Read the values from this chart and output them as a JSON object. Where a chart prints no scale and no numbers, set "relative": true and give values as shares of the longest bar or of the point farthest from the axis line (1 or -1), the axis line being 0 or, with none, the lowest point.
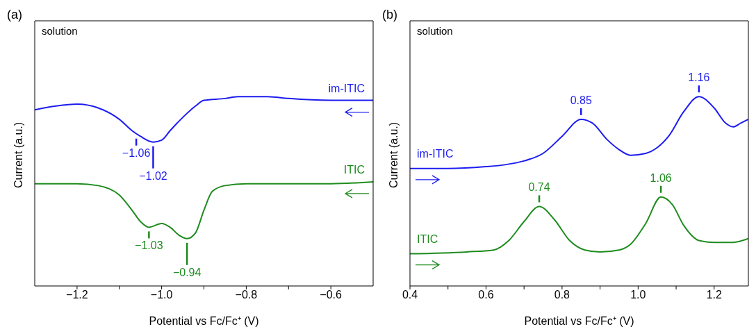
{
  "chart_data": [
    {
      "type": "line",
      "title": "(a)",
      "xlabel": "Potential vs Fc/Fc⁺ (V)",
      "ylabel": "Current (a.u.)",
      "relative": true,
      "marker": "none",
      "line_style": "solid",
      "xlim": [
        -1.3,
        -0.5
      ],
      "xticks": [
        {
          "value": -1.2,
          "label": "−1.2"
        },
        {
          "value": -1.1,
          "label": null
        },
        {
          "value": -1.0,
          "label": "−1.0"
        },
        {
          "value": -0.9,
          "label": null
        },
        {
          "value": -0.8,
          "label": "−0.8"
        },
        {
          "value": -0.7,
          "label": null
        },
        {
          "value": -0.6,
          "label": "−0.6"
        }
      ],
      "series": [
        {
          "name": "im-ITIC",
          "color": "#1c1cf0",
          "x": [
            -1.3,
            -1.25,
            -1.2,
            -1.15,
            -1.1,
            -1.07,
            -1.05,
            -1.02,
            -1.0,
            -0.98,
            -0.95,
            -0.92,
            -0.9,
            -0.85,
            -0.82,
            -0.75,
            -0.7,
            -0.6,
            -0.5
          ],
          "values": [
            0.93,
            0.95,
            0.96,
            0.94,
            0.88,
            0.82,
            0.79,
            0.76,
            0.77,
            0.82,
            0.89,
            0.95,
            0.98,
            0.99,
            1,
            1,
            0.99,
            0.98,
            0.98
          ]
        },
        {
          "name": "ITIC",
          "color": "#1e8c1e",
          "x": [
            -1.3,
            -1.2,
            -1.15,
            -1.1,
            -1.07,
            -1.05,
            -1.03,
            -1.0,
            -0.98,
            -0.96,
            -0.94,
            -0.92,
            -0.9,
            -0.88,
            -0.85,
            -0.8,
            -0.7,
            -0.6,
            -0.5
          ],
          "values": [
            0.54,
            0.54,
            0.53,
            0.48,
            0.4,
            0.34,
            0.31,
            0.33,
            0.31,
            0.27,
            0.25,
            0.28,
            0.4,
            0.5,
            0.53,
            0.54,
            0.54,
            0.54,
            0.55
          ]
        }
      ],
      "annotations": [
        "solution",
        {
          "text": "−1.06",
          "x": -1.06,
          "y": 0.8
        },
        {
          "text": "−1.02",
          "x": -1.02,
          "y": 0.76
        },
        {
          "text": "−1.03",
          "x": -1.03,
          "y": 0.31
        },
        {
          "text": "−0.94",
          "x": -0.94,
          "y": 0.25
        }
      ]
    },
    {
      "type": "line",
      "title": "(b)",
      "xlabel": "Potential vs Fc/Fc⁺ (V)",
      "ylabel": "Current (a.u.)",
      "relative": true,
      "marker": "none",
      "line_style": "solid",
      "xlim": [
        0.4,
        1.29
      ],
      "xticks": [
        0.4,
        {
          "value": 0.5,
          "label": null
        },
        0.6,
        {
          "value": 0.7,
          "label": null
        },
        0.8,
        {
          "value": 0.9,
          "label": null
        },
        {
          "value": 1.0,
          "label": "1.0"
        },
        {
          "value": 1.1,
          "label": null
        },
        1.2
      ],
      "series": [
        {
          "name": "im-ITIC",
          "color": "#1c1cf0",
          "x": [
            0.4,
            0.5,
            0.6,
            0.65,
            0.7,
            0.75,
            0.8,
            0.85,
            0.88,
            0.92,
            0.95,
            0.98,
            1.02,
            1.05,
            1.08,
            1.12,
            1.16,
            1.2,
            1.23,
            1.25,
            1.27,
            1.29
          ],
          "values": [
            0.62,
            0.62,
            0.63,
            0.64,
            0.66,
            0.7,
            0.79,
            0.88,
            0.86,
            0.77,
            0.72,
            0.69,
            0.7,
            0.73,
            0.79,
            0.92,
            1,
            0.94,
            0.86,
            0.84,
            0.86,
            0.88
          ]
        },
        {
          "name": "ITIC",
          "color": "#1e8c1e",
          "x": [
            0.4,
            0.55,
            0.62,
            0.66,
            0.7,
            0.74,
            0.78,
            0.82,
            0.86,
            0.9,
            0.95,
            0.98,
            1.02,
            1.06,
            1.09,
            1.12,
            1.16,
            1.2,
            1.25,
            1.29
          ],
          "values": [
            0.17,
            0.18,
            0.19,
            0.24,
            0.34,
            0.42,
            0.35,
            0.24,
            0.19,
            0.18,
            0.19,
            0.22,
            0.33,
            0.47,
            0.43,
            0.32,
            0.24,
            0.23,
            0.23,
            0.25
          ]
        }
      ],
      "annotations": [
        "solution",
        {
          "text": "0.85",
          "x": 0.85,
          "y": 0.88
        },
        {
          "text": "1.16",
          "x": 1.16,
          "y": 1
        },
        {
          "text": "0.74",
          "x": 0.74,
          "y": 0.42
        },
        {
          "text": "1.06",
          "x": 1.06,
          "y": 0.47
        }
      ]
    }
  ]
}
